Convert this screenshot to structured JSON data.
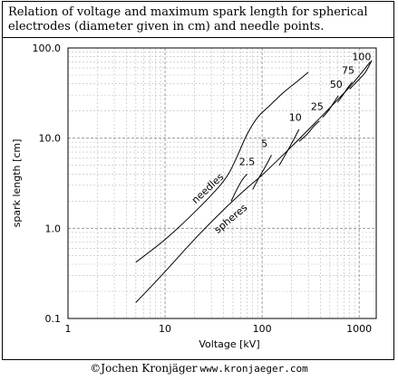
{
  "caption": "Relation of voltage and maximum spark length for spherical electrodes (diameter given in cm) and needle points.",
  "credit": {
    "author": "©Jochen Kronjäger",
    "url": "www.kronjaeger.com"
  },
  "chart_data": {
    "type": "line",
    "xlabel": "Voltage [kV]",
    "ylabel": "spark length [cm]",
    "xscale": "log",
    "yscale": "log",
    "xlim": [
      1,
      1500
    ],
    "ylim": [
      0.1,
      100
    ],
    "x_ticks": [
      1,
      10,
      100,
      1000
    ],
    "x_tick_labels": [
      "1",
      "10",
      "100",
      "1000"
    ],
    "y_ticks": [
      0.1,
      1,
      10,
      100
    ],
    "y_tick_labels": [
      "0.1",
      "1.0",
      "10.0",
      "100.0"
    ],
    "grid": true,
    "line_color": "#000000",
    "grid_color": "#bbbbbb",
    "series": [
      {
        "name": "needles",
        "points": [
          [
            5,
            0.42
          ],
          [
            10,
            0.75
          ],
          [
            20,
            1.5
          ],
          [
            35,
            2.8
          ],
          [
            45,
            4.0
          ],
          [
            55,
            6.2
          ],
          [
            70,
            11
          ],
          [
            90,
            17
          ],
          [
            120,
            23
          ],
          [
            160,
            31
          ],
          [
            220,
            41
          ],
          [
            300,
            54
          ]
        ]
      },
      {
        "name": "spheres",
        "points": [
          [
            5,
            0.15
          ],
          [
            10,
            0.33
          ],
          [
            20,
            0.75
          ],
          [
            40,
            1.6
          ],
          [
            70,
            2.8
          ],
          [
            100,
            3.9
          ],
          [
            200,
            8.0
          ],
          [
            400,
            17
          ],
          [
            800,
            37
          ],
          [
            1300,
            70
          ]
        ]
      },
      {
        "name": "2.5",
        "points": [
          [
            48,
            2.0
          ],
          [
            55,
            2.7
          ],
          [
            62,
            3.4
          ],
          [
            70,
            4.0
          ]
        ]
      },
      {
        "name": "5",
        "points": [
          [
            80,
            2.7
          ],
          [
            95,
            3.8
          ],
          [
            110,
            5.0
          ],
          [
            125,
            6.5
          ]
        ]
      },
      {
        "name": "10",
        "points": [
          [
            150,
            5.0
          ],
          [
            180,
            7.0
          ],
          [
            210,
            9.5
          ],
          [
            240,
            12.5
          ]
        ]
      },
      {
        "name": "25",
        "points": [
          [
            240,
            9.2
          ],
          [
            290,
            11
          ],
          [
            340,
            13.5
          ],
          [
            390,
            15.5
          ]
        ]
      },
      {
        "name": "50",
        "points": [
          [
            420,
            17
          ],
          [
            480,
            20
          ],
          [
            550,
            25
          ],
          [
            610,
            29.5
          ]
        ]
      },
      {
        "name": "75",
        "points": [
          [
            600,
            25
          ],
          [
            680,
            30
          ],
          [
            760,
            36
          ],
          [
            850,
            42
          ]
        ]
      },
      {
        "name": "100",
        "points": [
          [
            800,
            35
          ],
          [
            900,
            40
          ],
          [
            1020,
            46
          ],
          [
            1150,
            53
          ],
          [
            1250,
            62
          ],
          [
            1350,
            73
          ]
        ]
      }
    ],
    "annotations": [
      {
        "text": "needles",
        "x": 29,
        "y": 2.6,
        "rotate": -43
      },
      {
        "text": "spheres",
        "x": 50,
        "y": 1.2,
        "rotate": -40
      },
      {
        "text": "2.5",
        "x": 70,
        "y": 5.0
      },
      {
        "text": "5",
        "x": 106,
        "y": 8.0
      },
      {
        "text": "10",
        "x": 220,
        "y": 15.5
      },
      {
        "text": "25",
        "x": 370,
        "y": 20.5
      },
      {
        "text": "50",
        "x": 580,
        "y": 36
      },
      {
        "text": "75",
        "x": 770,
        "y": 52
      },
      {
        "text": "100",
        "x": 1060,
        "y": 73
      }
    ]
  }
}
